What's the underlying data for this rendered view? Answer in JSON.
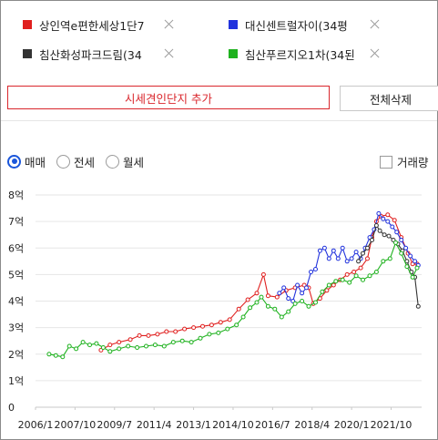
{
  "complexes": [
    {
      "name": "상인역e편한세상1단7",
      "color": "#e0201f"
    },
    {
      "name": "대신센트럴자이(34평",
      "color": "#2233dd"
    },
    {
      "name": "침산화성파크드림(34",
      "color": "#333333"
    },
    {
      "name": "침산푸르지오1차(34된",
      "color": "#1fb21f"
    }
  ],
  "buttons": {
    "add_label": "시세견인단지 추가",
    "delete_all_label": "전체삭제"
  },
  "deal_types": [
    {
      "label": "매매",
      "selected": true
    },
    {
      "label": "전세",
      "selected": false
    },
    {
      "label": "월세",
      "selected": false
    }
  ],
  "volume_label": "거래량",
  "volume_checked": false,
  "chart_data": {
    "type": "line",
    "x_unit": "year",
    "xlim": [
      2006.0,
      2023.1
    ],
    "ylim": [
      0,
      8
    ],
    "y_ticks": [
      "0",
      "1억",
      "2억",
      "3억",
      "4억",
      "5억",
      "6억",
      "7억",
      "8억"
    ],
    "x_ticks": [
      "2006/1",
      "2007/10",
      "2009/7",
      "2011/4",
      "2013/1",
      "2014/10",
      "2016/7",
      "2018/4",
      "2020/1",
      "2021/10"
    ],
    "x_tick_years": [
      2006.0,
      2007.75,
      2009.5,
      2011.25,
      2013.0,
      2014.75,
      2016.5,
      2018.25,
      2020.0,
      2021.75
    ],
    "grid": true,
    "series": [
      {
        "color": "#e0201f",
        "points": [
          [
            2008.9,
            2.15
          ],
          [
            2009.3,
            2.35
          ],
          [
            2009.7,
            2.45
          ],
          [
            2010.2,
            2.55
          ],
          [
            2010.6,
            2.7
          ],
          [
            2011.0,
            2.7
          ],
          [
            2011.4,
            2.75
          ],
          [
            2011.8,
            2.85
          ],
          [
            2012.2,
            2.85
          ],
          [
            2012.6,
            2.95
          ],
          [
            2013.0,
            3.0
          ],
          [
            2013.4,
            3.05
          ],
          [
            2013.8,
            3.1
          ],
          [
            2014.2,
            3.2
          ],
          [
            2014.6,
            3.3
          ],
          [
            2015.0,
            3.7
          ],
          [
            2015.4,
            4.05
          ],
          [
            2015.8,
            4.3
          ],
          [
            2016.1,
            5.0
          ],
          [
            2016.3,
            4.2
          ],
          [
            2016.7,
            4.15
          ],
          [
            2017.1,
            4.4
          ],
          [
            2017.5,
            4.5
          ],
          [
            2017.9,
            4.6
          ],
          [
            2018.1,
            4.5
          ],
          [
            2018.3,
            3.9
          ],
          [
            2018.6,
            4.1
          ],
          [
            2018.9,
            4.4
          ],
          [
            2019.2,
            4.6
          ],
          [
            2019.5,
            4.8
          ],
          [
            2019.8,
            5.0
          ],
          [
            2020.1,
            5.1
          ],
          [
            2020.4,
            5.25
          ],
          [
            2020.7,
            5.6
          ],
          [
            2020.9,
            6.4
          ],
          [
            2021.1,
            7.0
          ],
          [
            2021.3,
            7.2
          ],
          [
            2021.6,
            7.25
          ],
          [
            2021.9,
            7.05
          ],
          [
            2022.2,
            6.4
          ],
          [
            2022.5,
            5.8
          ],
          [
            2022.7,
            5.4
          ],
          [
            2022.9,
            5.4
          ]
        ]
      },
      {
        "color": "#2233dd",
        "points": [
          [
            2016.8,
            4.3
          ],
          [
            2017.0,
            4.5
          ],
          [
            2017.2,
            4.1
          ],
          [
            2017.4,
            4.0
          ],
          [
            2017.6,
            4.6
          ],
          [
            2017.8,
            4.3
          ],
          [
            2018.0,
            4.5
          ],
          [
            2018.2,
            5.1
          ],
          [
            2018.4,
            5.2
          ],
          [
            2018.6,
            5.9
          ],
          [
            2018.8,
            6.0
          ],
          [
            2019.0,
            5.6
          ],
          [
            2019.2,
            5.9
          ],
          [
            2019.4,
            5.6
          ],
          [
            2019.6,
            6.0
          ],
          [
            2019.8,
            5.5
          ],
          [
            2020.0,
            5.6
          ],
          [
            2020.2,
            5.85
          ],
          [
            2020.4,
            5.6
          ],
          [
            2020.6,
            6.0
          ],
          [
            2020.8,
            6.4
          ],
          [
            2021.0,
            6.7
          ],
          [
            2021.2,
            7.3
          ],
          [
            2021.4,
            7.1
          ],
          [
            2021.6,
            7.0
          ],
          [
            2021.8,
            6.8
          ],
          [
            2022.0,
            6.6
          ],
          [
            2022.2,
            6.3
          ],
          [
            2022.4,
            6.0
          ],
          [
            2022.6,
            5.7
          ],
          [
            2022.8,
            5.5
          ],
          [
            2022.95,
            5.35
          ]
        ]
      },
      {
        "color": "#333333",
        "points": [
          [
            2020.3,
            5.5
          ],
          [
            2020.5,
            5.8
          ],
          [
            2020.7,
            6.0
          ],
          [
            2020.9,
            6.3
          ],
          [
            2021.1,
            6.85
          ],
          [
            2021.25,
            6.65
          ],
          [
            2021.45,
            6.5
          ],
          [
            2021.65,
            6.45
          ],
          [
            2021.85,
            6.3
          ],
          [
            2022.05,
            6.15
          ],
          [
            2022.25,
            5.9
          ],
          [
            2022.45,
            5.5
          ],
          [
            2022.65,
            5.1
          ],
          [
            2022.8,
            4.9
          ],
          [
            2022.95,
            3.8
          ]
        ]
      },
      {
        "color": "#1fb21f",
        "points": [
          [
            2006.6,
            2.0
          ],
          [
            2006.9,
            1.95
          ],
          [
            2007.2,
            1.9
          ],
          [
            2007.5,
            2.3
          ],
          [
            2007.8,
            2.2
          ],
          [
            2008.1,
            2.45
          ],
          [
            2008.4,
            2.35
          ],
          [
            2008.7,
            2.4
          ],
          [
            2009.0,
            2.25
          ],
          [
            2009.3,
            2.1
          ],
          [
            2009.7,
            2.2
          ],
          [
            2010.1,
            2.3
          ],
          [
            2010.5,
            2.25
          ],
          [
            2010.9,
            2.3
          ],
          [
            2011.3,
            2.35
          ],
          [
            2011.7,
            2.3
          ],
          [
            2012.1,
            2.45
          ],
          [
            2012.5,
            2.5
          ],
          [
            2012.9,
            2.45
          ],
          [
            2013.3,
            2.6
          ],
          [
            2013.7,
            2.75
          ],
          [
            2014.1,
            2.8
          ],
          [
            2014.5,
            2.95
          ],
          [
            2014.9,
            3.1
          ],
          [
            2015.2,
            3.4
          ],
          [
            2015.5,
            3.75
          ],
          [
            2015.8,
            3.95
          ],
          [
            2016.0,
            4.15
          ],
          [
            2016.3,
            3.8
          ],
          [
            2016.6,
            3.7
          ],
          [
            2016.9,
            3.4
          ],
          [
            2017.2,
            3.6
          ],
          [
            2017.5,
            3.9
          ],
          [
            2017.8,
            4.0
          ],
          [
            2018.1,
            3.8
          ],
          [
            2018.4,
            3.95
          ],
          [
            2018.7,
            4.35
          ],
          [
            2019.0,
            4.6
          ],
          [
            2019.3,
            4.75
          ],
          [
            2019.6,
            4.8
          ],
          [
            2019.9,
            4.7
          ],
          [
            2020.2,
            4.95
          ],
          [
            2020.5,
            4.8
          ],
          [
            2020.8,
            4.95
          ],
          [
            2021.1,
            5.1
          ],
          [
            2021.4,
            5.5
          ],
          [
            2021.7,
            5.6
          ],
          [
            2021.95,
            6.2
          ],
          [
            2022.2,
            5.8
          ],
          [
            2022.45,
            5.3
          ],
          [
            2022.7,
            4.9
          ],
          [
            2022.9,
            5.25
          ]
        ]
      }
    ]
  }
}
